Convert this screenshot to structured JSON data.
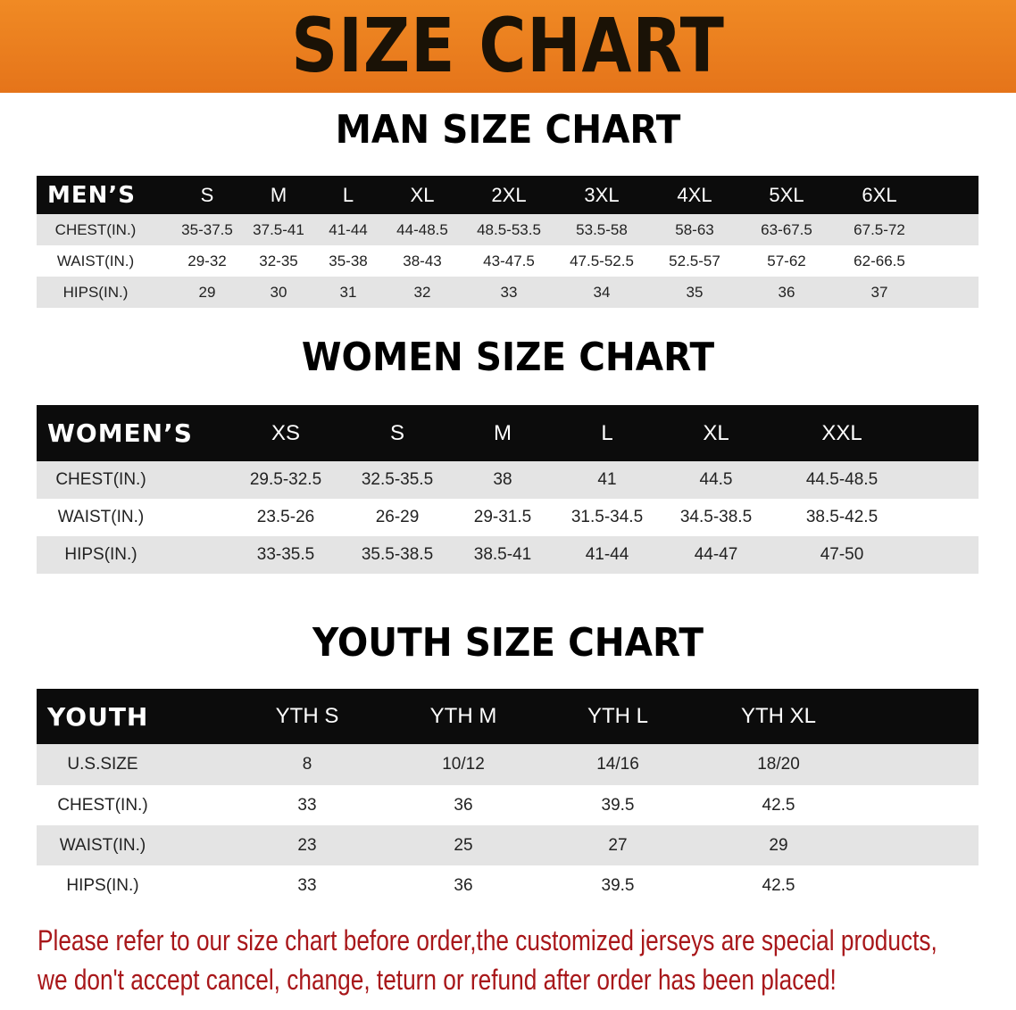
{
  "banner_title": "SIZE CHART",
  "men": {
    "title": "MAN SIZE CHART",
    "header": [
      "MEN’S",
      "S",
      "M",
      "L",
      "XL",
      "2XL",
      "3XL",
      "4XL",
      "5XL",
      "6XL"
    ],
    "rows": [
      [
        "CHEST(IN.)",
        "35-37.5",
        "37.5-41",
        "41-44",
        "44-48.5",
        "48.5-53.5",
        "53.5-58",
        "58-63",
        "63-67.5",
        "67.5-72"
      ],
      [
        "WAIST(IN.)",
        "29-32",
        "32-35",
        "35-38",
        "38-43",
        "43-47.5",
        "47.5-52.5",
        "52.5-57",
        "57-62",
        "62-66.5"
      ],
      [
        "HIPS(IN.)",
        "29",
        "30",
        "31",
        "32",
        "33",
        "34",
        "35",
        "36",
        "37"
      ]
    ]
  },
  "women": {
    "title": "WOMEN SIZE CHART",
    "header": [
      "WOMEN’S",
      "XS",
      "S",
      "M",
      "L",
      "XL",
      "XXL"
    ],
    "rows": [
      [
        "CHEST(IN.)",
        "29.5-32.5",
        "32.5-35.5",
        "38",
        "41",
        "44.5",
        "44.5-48.5"
      ],
      [
        "WAIST(IN.)",
        "23.5-26",
        "26-29",
        "29-31.5",
        "31.5-34.5",
        "34.5-38.5",
        "38.5-42.5"
      ],
      [
        "HIPS(IN.)",
        "33-35.5",
        "35.5-38.5",
        "38.5-41",
        "41-44",
        "44-47",
        "47-50"
      ]
    ]
  },
  "youth": {
    "title": "YOUTH SIZE CHART",
    "header": [
      "YOUTH",
      "YTH S",
      "YTH M",
      "YTH L",
      "YTH XL"
    ],
    "rows": [
      [
        "U.S.SIZE",
        "8",
        "10/12",
        "14/16",
        "18/20"
      ],
      [
        "CHEST(IN.)",
        "33",
        "36",
        "39.5",
        "42.5"
      ],
      [
        "WAIST(IN.)",
        "23",
        "25",
        "27",
        "29"
      ],
      [
        "HIPS(IN.)",
        "33",
        "36",
        "39.5",
        "42.5"
      ]
    ]
  },
  "note": {
    "line1": "Please refer to our size chart before order,the customized jerseys are special products,",
    "line2": "we don't accept cancel, change, teturn or refund after order has been placed!"
  },
  "colors": {
    "banner": "#e87a1c",
    "header_row": "#0c0c0c",
    "stripe": "#e4e4e4",
    "note": "#a8171a"
  }
}
